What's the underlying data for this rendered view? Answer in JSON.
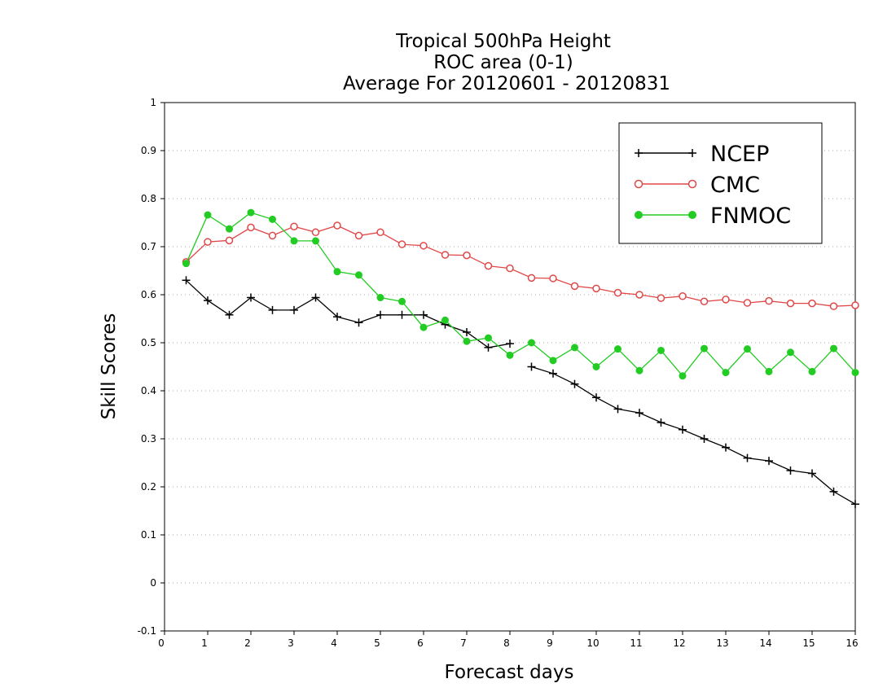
{
  "chart_data": {
    "type": "line",
    "title_lines": [
      "Tropical 500hPa Height",
      "ROC area (0-1)",
      "Average For 20120601 - 20120831"
    ],
    "xlabel": "Forecast days",
    "ylabel": "Skill Scores",
    "xlim": [
      0,
      16
    ],
    "ylim": [
      -0.1,
      1
    ],
    "x_ticks": [
      0,
      1,
      2,
      3,
      4,
      5,
      6,
      7,
      8,
      9,
      10,
      11,
      12,
      13,
      14,
      15,
      16
    ],
    "y_ticks": [
      -0.1,
      0,
      0.1,
      0.2,
      0.3,
      0.4,
      0.5,
      0.6,
      0.7,
      0.8,
      0.9,
      1
    ],
    "y_tick_labels": [
      "-0.1",
      "0",
      "0.1",
      "0.2",
      "0.3",
      "0.4",
      "0.5",
      "0.6",
      "0.7",
      "0.8",
      "0.9",
      "1"
    ],
    "grid": "horizontal dotted",
    "legend_position": "top-right",
    "series": [
      {
        "name": "NCEP",
        "color": "#000000",
        "marker": "plus",
        "x": [
          0.5,
          1,
          1.5,
          2,
          2.5,
          3,
          3.5,
          4,
          4.5,
          5,
          5.5,
          6,
          6.5,
          7,
          7.5,
          8
        ],
        "values": [
          0.63,
          0.588,
          0.558,
          0.594,
          0.568,
          0.568,
          0.594,
          0.554,
          0.542,
          0.558,
          0.558,
          0.558,
          0.538,
          0.522,
          0.49,
          0.498
        ],
        "x2": [
          8.5,
          9,
          9.5,
          10,
          10.5,
          11,
          11.5,
          12,
          12.5,
          13,
          13.5,
          14,
          14.5,
          15,
          15.5,
          16
        ],
        "values2": [
          0.45,
          0.436,
          0.414,
          0.386,
          0.362,
          0.354,
          0.334,
          0.319,
          0.3,
          0.282,
          0.26,
          0.254,
          0.234,
          0.228,
          0.19,
          0.164
        ]
      },
      {
        "name": "CMC",
        "color": "#e04848",
        "marker": "open-circle",
        "x": [
          0.5,
          1,
          1.5,
          2,
          2.5,
          3,
          3.5,
          4,
          4.5,
          5,
          5.5,
          6,
          6.5,
          7,
          7.5,
          8,
          8.5,
          9,
          9.5,
          10,
          10.5,
          11,
          11.5,
          12,
          12.5,
          13,
          13.5,
          14,
          14.5,
          15,
          15.5,
          16
        ],
        "values": [
          0.668,
          0.71,
          0.713,
          0.74,
          0.723,
          0.742,
          0.73,
          0.744,
          0.723,
          0.73,
          0.705,
          0.702,
          0.683,
          0.682,
          0.66,
          0.655,
          0.635,
          0.634,
          0.618,
          0.613,
          0.604,
          0.6,
          0.593,
          0.597,
          0.586,
          0.59,
          0.583,
          0.587,
          0.582,
          0.582,
          0.576,
          0.578
        ]
      },
      {
        "name": "FNMOC",
        "color": "#22cc22",
        "marker": "filled-circle",
        "x": [
          0.5,
          1,
          1.5,
          2,
          2.5,
          3,
          3.5,
          4,
          4.5,
          5,
          5.5,
          6,
          6.5,
          7,
          7.5,
          8,
          8.5,
          9,
          9.5,
          10,
          10.5,
          11,
          11.5,
          12,
          12.5,
          13,
          13.5,
          14,
          14.5,
          15,
          15.5,
          16
        ],
        "values": [
          0.665,
          0.766,
          0.737,
          0.771,
          0.757,
          0.712,
          0.712,
          0.648,
          0.641,
          0.594,
          0.586,
          0.532,
          0.547,
          0.503,
          0.51,
          0.474,
          0.5,
          0.463,
          0.49,
          0.45,
          0.487,
          0.442,
          0.484,
          0.431,
          0.488,
          0.438,
          0.487,
          0.44,
          0.48,
          0.44,
          0.488,
          0.438
        ]
      }
    ]
  }
}
